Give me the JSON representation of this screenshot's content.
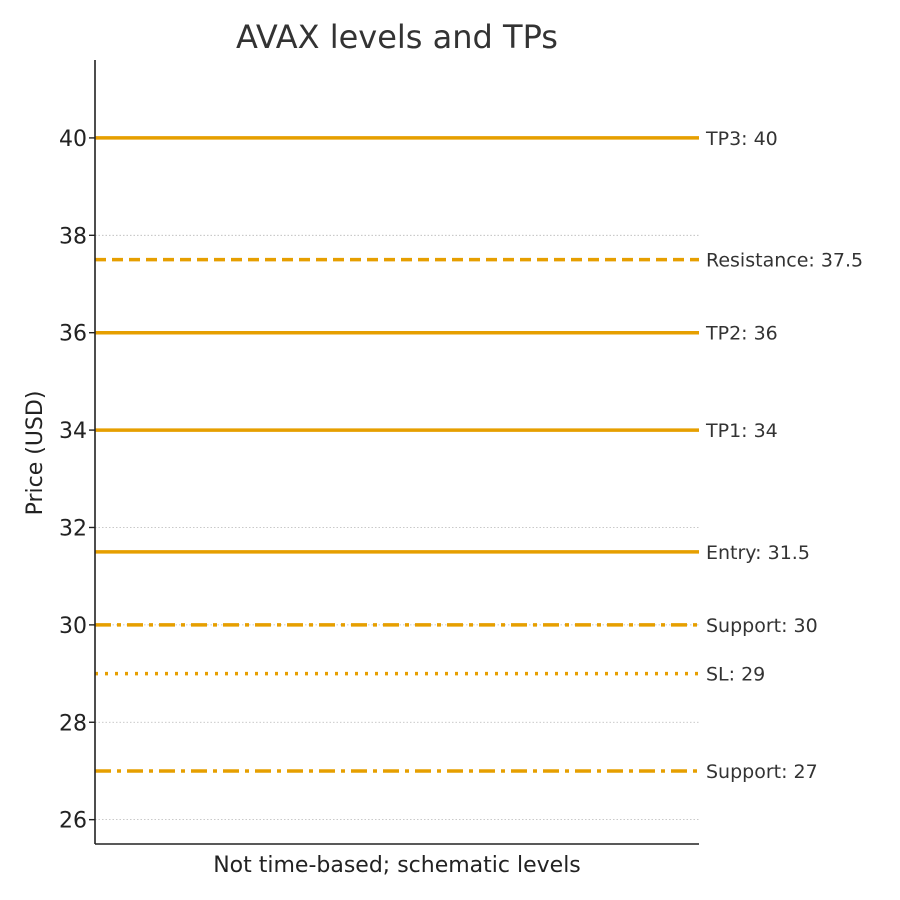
{
  "chart_data": {
    "type": "line",
    "title": "AVAX levels and TPs",
    "xlabel": "Not time-based; schematic levels",
    "ylabel": "Price (USD)",
    "ylim": [
      25.5,
      41.6
    ],
    "yticks": [
      26,
      28,
      30,
      32,
      34,
      36,
      38,
      40
    ],
    "ytick_labels": [
      "26",
      "28",
      "30",
      "32",
      "34",
      "36",
      "38",
      "40"
    ],
    "grid": "horizontal dotted",
    "line_color": "#E69F00",
    "levels": [
      {
        "label": "TP3: 40",
        "value": 40,
        "style": "solid"
      },
      {
        "label": "Resistance: 37.5",
        "value": 37.5,
        "style": "dashed"
      },
      {
        "label": "TP2: 36",
        "value": 36,
        "style": "solid"
      },
      {
        "label": "TP1: 34",
        "value": 34,
        "style": "solid"
      },
      {
        "label": "Entry: 31.5",
        "value": 31.5,
        "style": "solid"
      },
      {
        "label": "Support: 30",
        "value": 30,
        "style": "dashdot"
      },
      {
        "label": "SL: 29",
        "value": 29,
        "style": "dotted"
      },
      {
        "label": "Support: 27",
        "value": 27,
        "style": "dashdot"
      }
    ]
  }
}
